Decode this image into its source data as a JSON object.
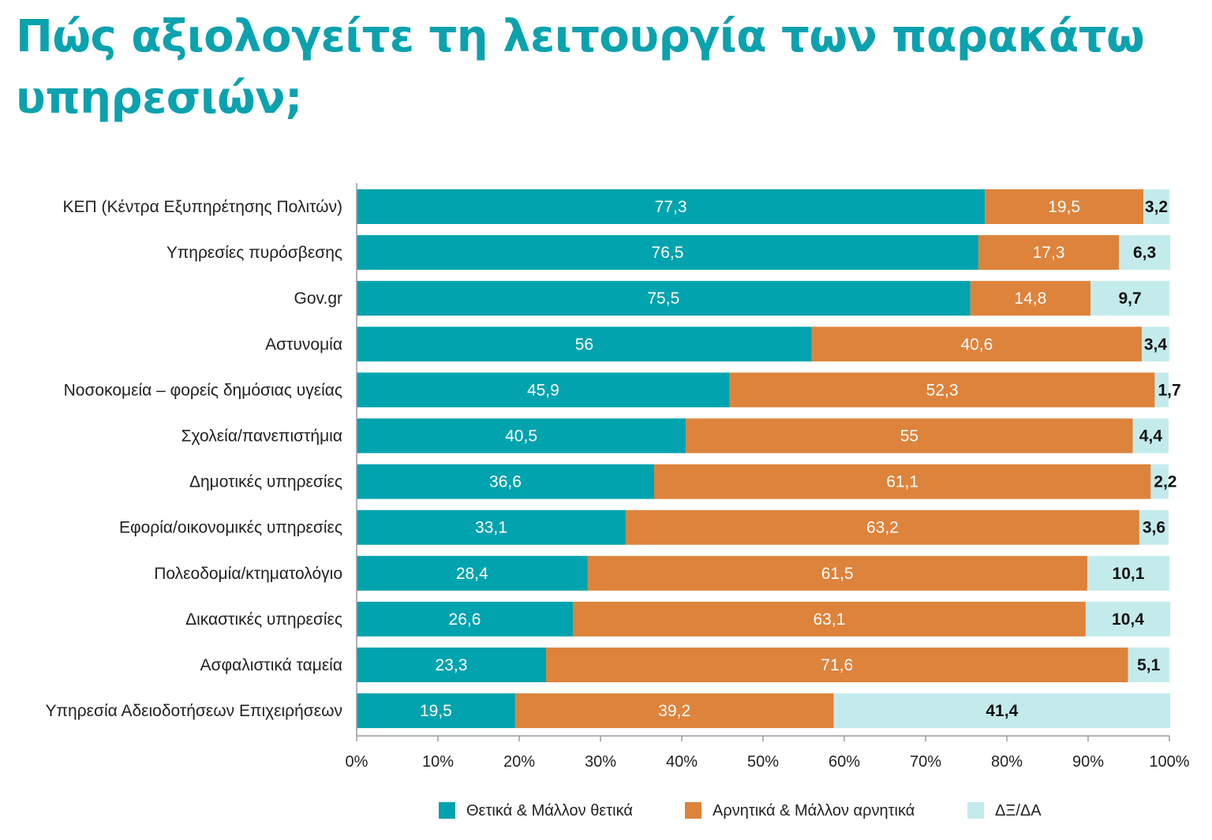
{
  "chart_data": {
    "type": "bar",
    "orientation": "horizontal",
    "stacked": true,
    "title": "Πώς αξιολογείτε τη λειτουργία των παρακάτω υπηρεσιών;",
    "categories": [
      "ΚΕΠ (Κέντρα Εξυπηρέτησης Πολιτών)",
      "Υπηρεσίες πυρόσβεσης",
      "Gov.gr",
      "Αστυνομία",
      "Νοσοκομεία – φορείς δημόσιας υγείας",
      "Σχολεία/πανεπιστήμια",
      "Δημοτικές υπηρεσίες",
      "Εφορία/οικονομικές υπηρεσίες",
      "Πολεοδομία/κτηματολόγιο",
      "Δικαστικές υπηρεσίες",
      "Ασφαλιστικά ταμεία",
      "Υπηρεσία Αδειοδοτήσεων Επιχειρήσεων"
    ],
    "series": [
      {
        "name": "Θετικά & Μάλλον θετικά",
        "color": "#00a3ae",
        "label_color": "#ffffff",
        "values": [
          77.3,
          76.5,
          75.5,
          56,
          45.9,
          40.5,
          36.6,
          33.1,
          28.4,
          26.6,
          23.3,
          19.5
        ],
        "labels": [
          "77,3",
          "76,5",
          "75,5",
          "56",
          "45,9",
          "40,5",
          "36,6",
          "33,1",
          "28,4",
          "26,6",
          "23,3",
          "19,5"
        ]
      },
      {
        "name": "Αρνητικά & Μάλλον αρνητικά",
        "color": "#dd833b",
        "label_color": "#ffffff",
        "values": [
          19.5,
          17.3,
          14.8,
          40.6,
          52.3,
          55,
          61.1,
          63.2,
          61.5,
          63.1,
          71.6,
          39.2
        ],
        "labels": [
          "19,5",
          "17,3",
          "14,8",
          "40,6",
          "52,3",
          "55",
          "61,1",
          "63,2",
          "61,5",
          "63,1",
          "71,6",
          "39,2"
        ]
      },
      {
        "name": "ΔΞ/ΔΑ",
        "color": "#c4ebec",
        "label_color": "#111111",
        "values": [
          3.2,
          6.3,
          9.7,
          3.4,
          1.7,
          4.4,
          2.2,
          3.6,
          10.1,
          10.4,
          5.1,
          41.4
        ],
        "labels": [
          "3,2",
          "6,3",
          "9,7",
          "3,4",
          "1,7",
          "4,4",
          "2,2",
          "3,6",
          "10,1",
          "10,4",
          "5,1",
          "41,4"
        ]
      }
    ],
    "xlim": [
      0,
      100
    ],
    "x_ticks": [
      "0%",
      "10%",
      "20%",
      "30%",
      "40%",
      "50%",
      "60%",
      "70%",
      "80%",
      "90%",
      "100%"
    ],
    "xlabel": "",
    "ylabel": "",
    "grid": false,
    "legend_position": "bottom"
  }
}
